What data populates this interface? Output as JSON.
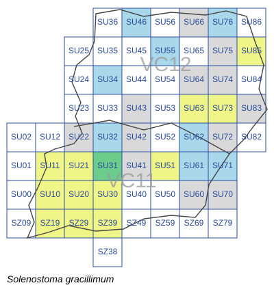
{
  "map": {
    "cells": [
      {
        "label": "SU36",
        "fill": "#ffffff"
      },
      {
        "label": "SU46",
        "fill": "#a8d8ea"
      },
      {
        "label": "SU56",
        "fill": "#ffffff"
      },
      {
        "label": "SU66",
        "fill": "#d9d9d9"
      },
      {
        "label": "SU76",
        "fill": "#a8d8ea"
      },
      {
        "label": "SU86",
        "fill": "#ffffff"
      },
      {
        "label": "SU25",
        "fill": "#ffffff"
      },
      {
        "label": "SU35",
        "fill": "#ffffff"
      },
      {
        "label": "SU45",
        "fill": "#ffffff"
      },
      {
        "label": "SU55",
        "fill": "#a8d8ea"
      },
      {
        "label": "SU65",
        "fill": "#ffffff"
      },
      {
        "label": "SU75",
        "fill": "#d9d9d9"
      },
      {
        "label": "SU85",
        "fill": "#f0f588"
      },
      {
        "label": "SU24",
        "fill": "#ffffff"
      },
      {
        "label": "SU34",
        "fill": "#a8d8ea"
      },
      {
        "label": "SU44",
        "fill": "#ffffff"
      },
      {
        "label": "SU54",
        "fill": "#ffffff"
      },
      {
        "label": "SU64",
        "fill": "#d9d9d9"
      },
      {
        "label": "SU74",
        "fill": "#d9d9d9"
      },
      {
        "label": "SU84",
        "fill": "#ffffff"
      },
      {
        "label": "SU23",
        "fill": "#ffffff"
      },
      {
        "label": "SU33",
        "fill": "#ffffff"
      },
      {
        "label": "SU43",
        "fill": "#d9d9d9"
      },
      {
        "label": "SU53",
        "fill": "#ffffff"
      },
      {
        "label": "SU63",
        "fill": "#f0f588"
      },
      {
        "label": "SU73",
        "fill": "#f0f588"
      },
      {
        "label": "SU83",
        "fill": "#d9d9d9"
      },
      {
        "label": "SU02",
        "fill": "#ffffff"
      },
      {
        "label": "SU12",
        "fill": "#ffffff"
      },
      {
        "label": "SU22",
        "fill": "#d9d9d9"
      },
      {
        "label": "SU32",
        "fill": "#a8d8ea"
      },
      {
        "label": "SU42",
        "fill": "#d9d9d9"
      },
      {
        "label": "SU52",
        "fill": "#ffffff"
      },
      {
        "label": "SU62",
        "fill": "#a8d8ea"
      },
      {
        "label": "SU72",
        "fill": "#d9d9d9"
      },
      {
        "label": "SU82",
        "fill": "#ffffff"
      },
      {
        "label": "SU01",
        "fill": "#ffffff"
      },
      {
        "label": "SU11",
        "fill": "#f0f588"
      },
      {
        "label": "SU21",
        "fill": "#f0f588"
      },
      {
        "label": "SU31",
        "fill": "#6ccc8c"
      },
      {
        "label": "SU41",
        "fill": "#d9d9d9"
      },
      {
        "label": "SU51",
        "fill": "#f0f588"
      },
      {
        "label": "SU61",
        "fill": "#a8d8ea"
      },
      {
        "label": "SU71",
        "fill": "#a8d8ea"
      },
      {
        "label": "SU00",
        "fill": "#ffffff"
      },
      {
        "label": "SU10",
        "fill": "#f0f588"
      },
      {
        "label": "SU20",
        "fill": "#f0f588"
      },
      {
        "label": "SU30",
        "fill": "#f0f588"
      },
      {
        "label": "SU40",
        "fill": "#ffffff"
      },
      {
        "label": "SU50",
        "fill": "#ffffff"
      },
      {
        "label": "SU60",
        "fill": "#d9d9d9"
      },
      {
        "label": "SU70",
        "fill": "#d9d9d9"
      },
      {
        "label": "SZ09",
        "fill": "#ffffff"
      },
      {
        "label": "SZ19",
        "fill": "#f0f588"
      },
      {
        "label": "SZ29",
        "fill": "#f0f588"
      },
      {
        "label": "SZ39",
        "fill": "#f0f588"
      },
      {
        "label": "SZ49",
        "fill": "#ffffff"
      },
      {
        "label": "SZ59",
        "fill": "#ffffff"
      },
      {
        "label": "SZ69",
        "fill": "#ffffff"
      },
      {
        "label": "SZ79",
        "fill": "#ffffff"
      },
      {
        "label": "SZ38",
        "fill": "#ffffff"
      }
    ],
    "regions": [
      "VC12",
      "VC11"
    ],
    "caption": "Solenostoma gracillimum"
  }
}
